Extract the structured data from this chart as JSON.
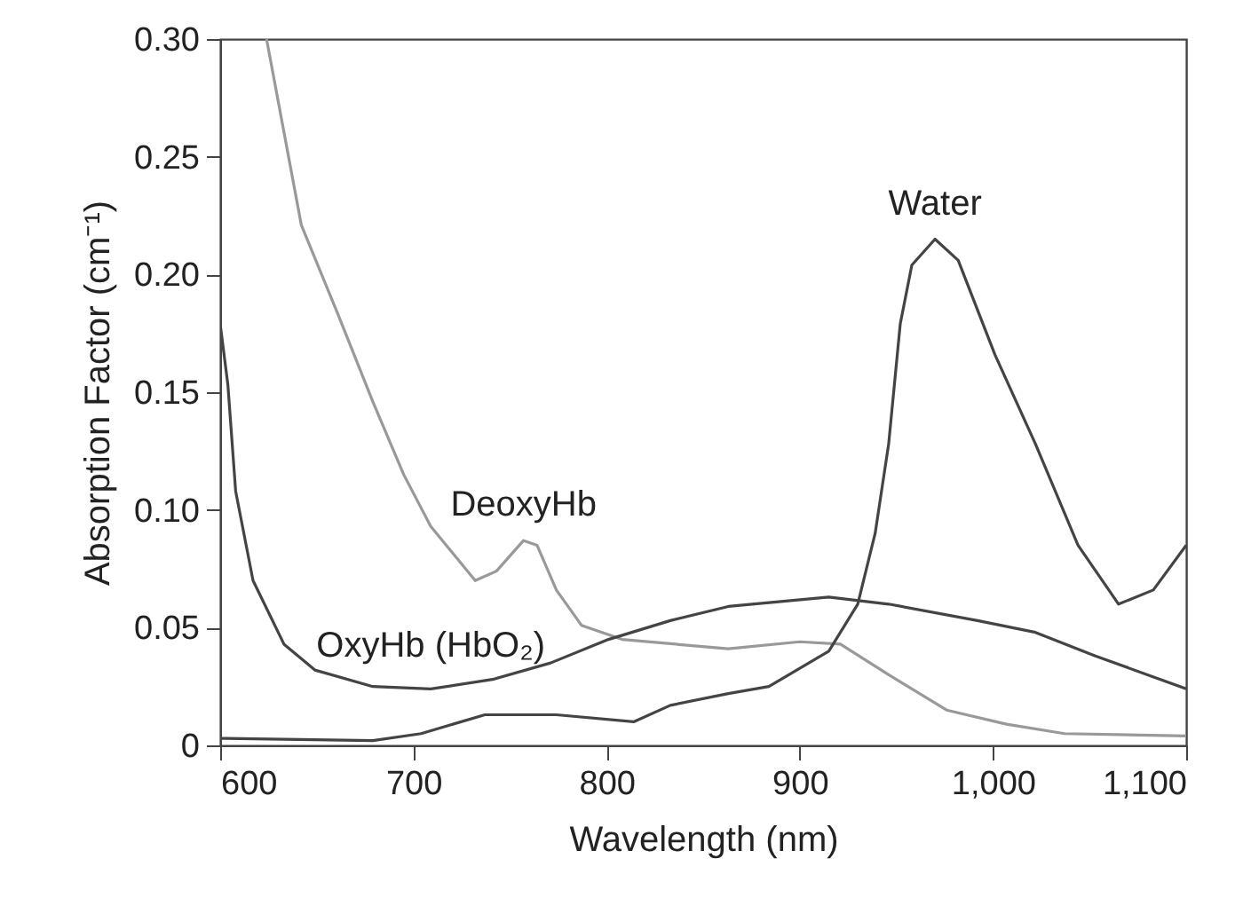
{
  "chart_data": {
    "type": "line",
    "xlabel": "Wavelength (nm)",
    "ylabel": "Absorption Factor (cm⁻¹)",
    "xlim": [
      600,
      1100
    ],
    "xticks": [
      600,
      700,
      800,
      900,
      {
        "value": 1000,
        "label": "1,000"
      },
      {
        "value": 1100,
        "label": "1,100"
      }
    ],
    "ylim": [
      0,
      0.3
    ],
    "yticks": [
      0,
      0.05,
      {
        "value": 0.1,
        "label": "0.10"
      },
      0.15,
      {
        "value": 0.2,
        "label": "0.20"
      },
      0.25,
      {
        "value": 0.3,
        "label": "0.30"
      }
    ],
    "grid": false,
    "legend": false,
    "marker": "none",
    "line_style": "solid",
    "series": [
      {
        "name": "DeoxyHb",
        "color": "#999999",
        "x": [
          624,
          642,
          661,
          679,
          695,
          709,
          732,
          743,
          757,
          764,
          774,
          787,
          808,
          863,
          900,
          921,
          946,
          976,
          1007,
          1037,
          1100
        ],
        "values": [
          0.3,
          0.221,
          0.183,
          0.146,
          0.115,
          0.093,
          0.07,
          0.074,
          0.087,
          0.085,
          0.066,
          0.051,
          0.045,
          0.041,
          0.044,
          0.043,
          0.03,
          0.015,
          0.009,
          0.005,
          0.004
        ]
      },
      {
        "name": "OxyHb (HbO₂)",
        "color": "#444444",
        "x": [
          600,
          604,
          608,
          617,
          633,
          649,
          679,
          709,
          741,
          771,
          801,
          833,
          863,
          915,
          946,
          992,
          1022,
          1053,
          1100
        ],
        "values": [
          0.179,
          0.153,
          0.108,
          0.07,
          0.043,
          0.032,
          0.025,
          0.024,
          0.028,
          0.035,
          0.045,
          0.053,
          0.059,
          0.063,
          0.06,
          0.053,
          0.048,
          0.038,
          0.024
        ]
      },
      {
        "name": "Water",
        "color": "#444444",
        "x": [
          600,
          679,
          704,
          737,
          774,
          814,
          833,
          863,
          884,
          915,
          930,
          939,
          946,
          952,
          958,
          970,
          982,
          1001,
          1022,
          1044,
          1065,
          1083,
          1100
        ],
        "values": [
          0.003,
          0.002,
          0.005,
          0.013,
          0.013,
          0.01,
          0.017,
          0.022,
          0.025,
          0.04,
          0.06,
          0.09,
          0.128,
          0.179,
          0.204,
          0.215,
          0.206,
          0.166,
          0.128,
          0.085,
          0.06,
          0.066,
          0.085
        ]
      }
    ]
  }
}
